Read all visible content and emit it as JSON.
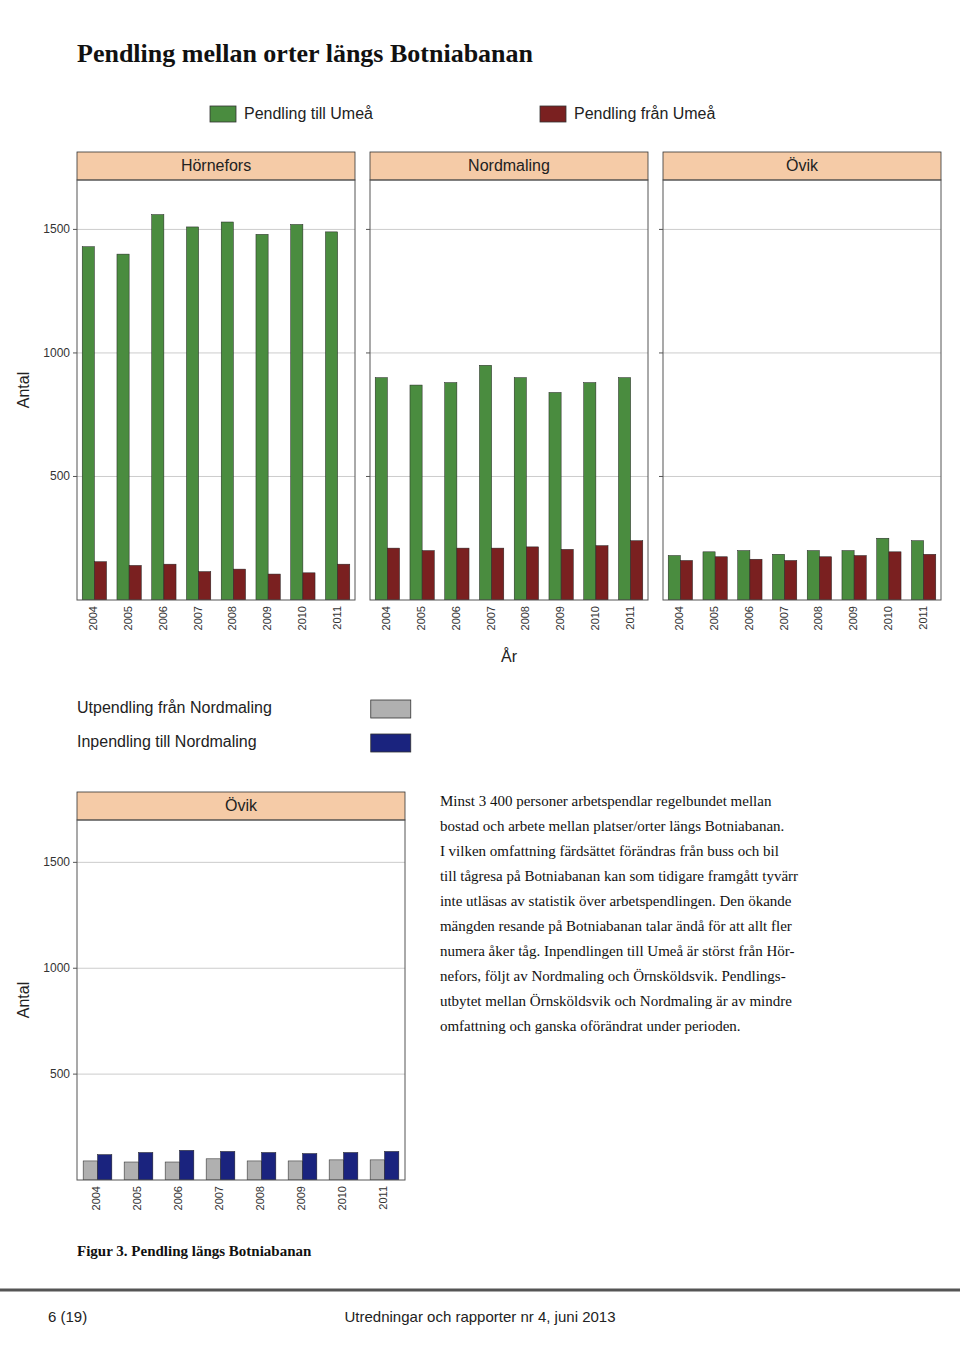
{
  "title": "Pendling mellan orter längs Botniabanan",
  "body_text_lines": [
    "Minst 3 400 personer arbetspendlar regelbundet mellan",
    "bostad och arbete mellan platser/orter längs Botniabanan.",
    "I vilken omfattning färdsättet förändras från buss och bil",
    "till tågresa på Botniabanan kan som tidigare framgått tyvärr",
    "inte utläsas av statistik över arbetspendlingen. Den ökande",
    "mängden resande på Botniabanan talar ändå för att allt fler",
    "numera åker tåg. Inpendlingen till Umeå är störst från Hör-",
    "nefors, följt av Nordmaling och Örnsköldsvik. Pendlings-",
    "utbytet mellan Örnsköldsvik och Nordmaling är av mindre",
    "omfattning och ganska oförändrat under perioden."
  ],
  "caption": "Figur 3. Pendling längs Botniabanan",
  "footer_left": "6 (19)",
  "footer_right": "Utredningar och rapporter nr 4, juni 2013",
  "chart_data": [
    {
      "type": "bar",
      "title": "Hörnefors",
      "y_label": "Antal",
      "x_label": "År",
      "categories": [
        "2004",
        "2005",
        "2006",
        "2007",
        "2008",
        "2009",
        "2010",
        "2011"
      ],
      "series": [
        {
          "name": "Pendling till Umeå",
          "color": "#4a8c3f",
          "values": [
            1430,
            1400,
            1560,
            1510,
            1530,
            1480,
            1520,
            1490
          ]
        },
        {
          "name": "Pendling från Umeå",
          "color": "#7a2020",
          "values": [
            155,
            140,
            145,
            115,
            125,
            105,
            110,
            145
          ]
        }
      ],
      "ylim": [
        0,
        1700
      ],
      "yticks": [
        500,
        1000,
        1500
      ],
      "grid": true
    },
    {
      "type": "bar",
      "title": "Nordmaling",
      "categories": [
        "2004",
        "2005",
        "2006",
        "2007",
        "2008",
        "2009",
        "2010",
        "2011"
      ],
      "series": [
        {
          "name": "Pendling till Umeå",
          "color": "#4a8c3f",
          "values": [
            900,
            870,
            880,
            950,
            900,
            840,
            880,
            900
          ]
        },
        {
          "name": "Pendling från Umeå",
          "color": "#7a2020",
          "values": [
            210,
            200,
            210,
            210,
            215,
            205,
            220,
            240
          ]
        }
      ],
      "ylim": [
        0,
        1700
      ],
      "yticks": [
        500,
        1000,
        1500
      ],
      "grid": true,
      "tick_labels": "x"
    },
    {
      "type": "bar",
      "title": "Övik",
      "categories": [
        "2004",
        "2005",
        "2006",
        "2007",
        "2008",
        "2009",
        "2010",
        "2011"
      ],
      "series": [
        {
          "name": "Pendling till Umeå",
          "color": "#4a8c3f",
          "values": [
            180,
            195,
            200,
            185,
            200,
            200,
            250,
            240
          ]
        },
        {
          "name": "Pendling från Umeå",
          "color": "#7a2020",
          "values": [
            160,
            175,
            165,
            160,
            175,
            180,
            195,
            185
          ]
        }
      ],
      "ylim": [
        0,
        1700
      ],
      "yticks": [
        500,
        1000,
        1500
      ],
      "grid": true,
      "tick_labels": "x"
    },
    {
      "type": "bar",
      "title": "Övik",
      "y_label": "Antal",
      "categories": [
        "2004",
        "2005",
        "2006",
        "2007",
        "2008",
        "2009",
        "2010",
        "2011"
      ],
      "series": [
        {
          "name": "Utpendling från Nordmaling",
          "color": "#b0b0b0",
          "values": [
            90,
            85,
            85,
            100,
            90,
            90,
            95,
            95
          ]
        },
        {
          "name": "Inpendling till Nordmaling",
          "color": "#1a237e",
          "values": [
            120,
            130,
            140,
            135,
            130,
            125,
            130,
            135
          ]
        }
      ],
      "ylim": [
        0,
        1700
      ],
      "yticks": [
        500,
        1000,
        1500
      ],
      "grid": true
    }
  ]
}
